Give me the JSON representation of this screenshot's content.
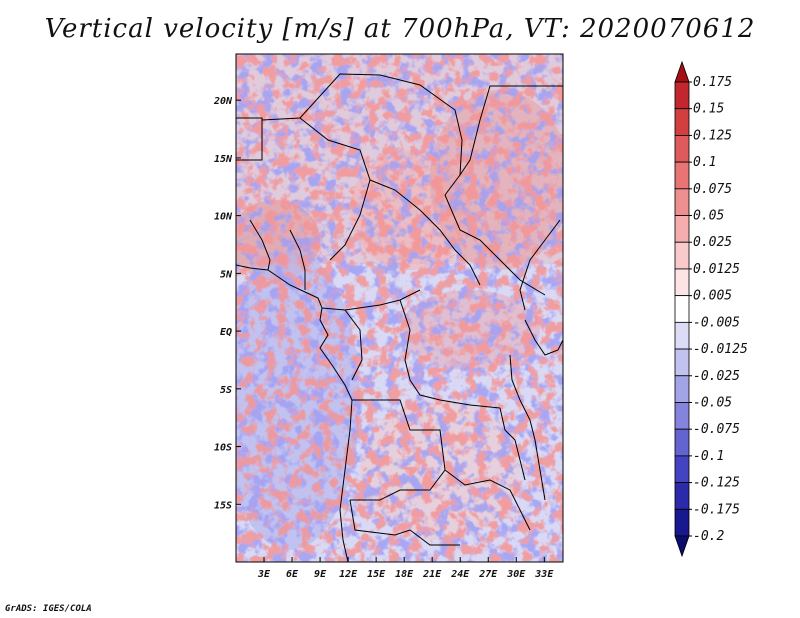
{
  "title": "Vertical velocity [m/s] at 700hPa, VT: 2020070612",
  "footer": "GrADS: IGES/COLA",
  "chart_data": {
    "type": "heatmap",
    "variable": "Vertical velocity",
    "units": "m/s",
    "level": "700hPa",
    "valid_time": "2020070612",
    "lon_range": [
      0,
      35
    ],
    "lat_range": [
      -20,
      24
    ],
    "lon_ticks": [
      "3E",
      "6E",
      "9E",
      "12E",
      "15E",
      "18E",
      "21E",
      "24E",
      "27E",
      "30E",
      "33E"
    ],
    "lat_ticks": [
      "20N",
      "15N",
      "10N",
      "5N",
      "EQ",
      "5S",
      "10S",
      "15S"
    ],
    "colorbar": {
      "labels": [
        "0.175",
        "0.15",
        "0.125",
        "0.1",
        "0.075",
        "0.05",
        "0.025",
        "0.0125",
        "0.005",
        "-0.005",
        "-0.0125",
        "-0.025",
        "-0.05",
        "-0.075",
        "-0.1",
        "-0.125",
        "-0.175",
        "-0.2"
      ],
      "colors": [
        "#a50f15",
        "#c1272d",
        "#d23f3f",
        "#df5a5a",
        "#e87474",
        "#ef9090",
        "#f5adad",
        "#f9caca",
        "#fde4e4",
        "#ffffff",
        "#dcdcf7",
        "#c2c2f0",
        "#a3a3e8",
        "#8484dd",
        "#6363d1",
        "#4444c2",
        "#2a2aab",
        "#18188f",
        "#0c0c6e"
      ]
    }
  }
}
